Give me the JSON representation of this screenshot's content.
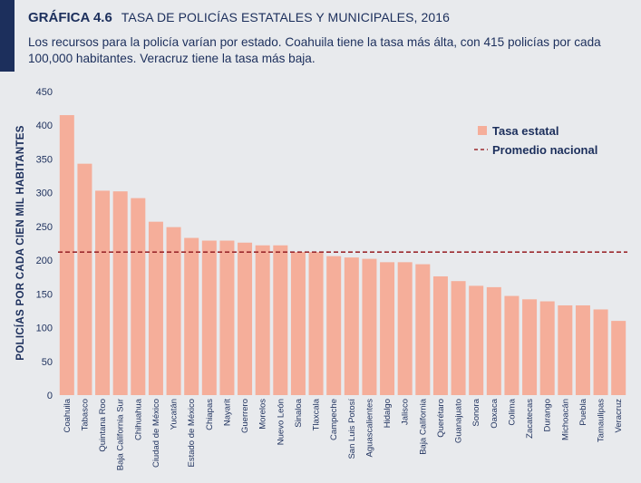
{
  "header": {
    "figure_label": "GRÁFICA 4.6",
    "title": "TASA DE POLICÍAS ESTATALES Y MUNICIPALES, 2016",
    "subtitle": "Los recursos para la policía varían por estado. Coahuila tiene la tasa más álta, con 415 policías por cada 100,000 habitantes. Veracruz tiene la tasa más baja."
  },
  "colors": {
    "bar": "#f5ae9a",
    "average_line": "#9c2a2f",
    "text": "#1c2f5c",
    "background": "#e8eaed",
    "accent": "#1c2f5c"
  },
  "chart_data": {
    "type": "bar",
    "title": "TASA DE POLICÍAS ESTATALES Y MUNICIPALES, 2016",
    "ylabel": "POLICÍAS POR CADA CIEN MIL HABITANTES",
    "xlabel": "",
    "ylim": [
      0,
      450
    ],
    "yticks": [
      0,
      50,
      100,
      150,
      200,
      250,
      300,
      350,
      400,
      450
    ],
    "grid": false,
    "legend_position": "top-right",
    "categories": [
      "Coahuila",
      "Tabasco",
      "Quintana Roo",
      "Baja California Sur",
      "Chihuahua",
      "Ciudad de México",
      "Yucatán",
      "Estado de México",
      "Chiapas",
      "Nayarit",
      "Guerrero",
      "Morelos",
      "Nuevo León",
      "Sinaloa",
      "Tlaxcala",
      "Campeche",
      "San Luis Potosí",
      "Aguascalientes",
      "Hidalgo",
      "Jalisco",
      "Baja California",
      "Querétaro",
      "Guanajuato",
      "Sonora",
      "Oaxaca",
      "Colima",
      "Zacatecas",
      "Durango",
      "Michoacán",
      "Puebla",
      "Tamaulipas",
      "Veracruz"
    ],
    "series": [
      {
        "name": "Tasa estatal",
        "values": [
          415,
          343,
          303,
          302,
          292,
          257,
          249,
          233,
          229,
          229,
          226,
          222,
          222,
          212,
          212,
          206,
          204,
          202,
          197,
          197,
          194,
          176,
          169,
          162,
          160,
          147,
          142,
          139,
          133,
          133,
          127,
          110
        ]
      }
    ],
    "reference_line": {
      "name": "Promedio nacional",
      "value": 212,
      "style": "dashed"
    }
  }
}
